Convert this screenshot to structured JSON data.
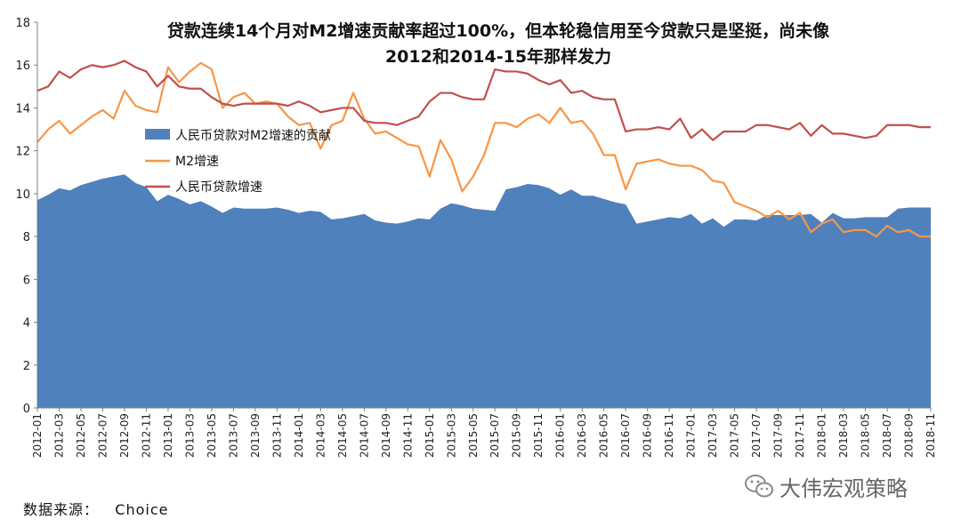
{
  "source_label": "数据来源：",
  "source_value": "Choice",
  "watermark": "大伟宏观策略",
  "watermark_icon": "wechat-icon",
  "chart_data": {
    "type": "area+line",
    "title_line1": "贷款连续14个月对M2增速贡献率超过100%，但本轮稳信用至今贷款只是坚挺，尚未像",
    "title_line2": "2012和2014-15年那样发力",
    "ylim": [
      0,
      18
    ],
    "yticks": [
      0,
      2,
      4,
      6,
      8,
      10,
      12,
      14,
      16,
      18
    ],
    "grid": false,
    "legend_position": "left-middle",
    "x_tick_labels": [
      "2012-01",
      "2012-03",
      "2012-05",
      "2012-07",
      "2012-09",
      "2012-11",
      "2013-01",
      "2013-03",
      "2013-05",
      "2013-07",
      "2013-09",
      "2013-11",
      "2014-01",
      "2014-03",
      "2014-05",
      "2014-07",
      "2014-09",
      "2014-11",
      "2015-01",
      "2015-03",
      "2015-05",
      "2015-07",
      "2015-09",
      "2015-11",
      "2016-01",
      "2016-03",
      "2016-05",
      "2016-07",
      "2016-09",
      "2016-11",
      "2017-01",
      "2017-03",
      "2017-05",
      "2017-07",
      "2017-09",
      "2017-11",
      "2018-01",
      "2018-03",
      "2018-05",
      "2018-07",
      "2018-09",
      "2018-11"
    ],
    "x": [
      "2012-01",
      "2012-02",
      "2012-03",
      "2012-04",
      "2012-05",
      "2012-06",
      "2012-07",
      "2012-08",
      "2012-09",
      "2012-10",
      "2012-11",
      "2012-12",
      "2013-01",
      "2013-02",
      "2013-03",
      "2013-04",
      "2013-05",
      "2013-06",
      "2013-07",
      "2013-08",
      "2013-09",
      "2013-10",
      "2013-11",
      "2013-12",
      "2014-01",
      "2014-02",
      "2014-03",
      "2014-04",
      "2014-05",
      "2014-06",
      "2014-07",
      "2014-08",
      "2014-09",
      "2014-10",
      "2014-11",
      "2014-12",
      "2015-01",
      "2015-02",
      "2015-03",
      "2015-04",
      "2015-05",
      "2015-06",
      "2015-07",
      "2015-08",
      "2015-09",
      "2015-10",
      "2015-11",
      "2015-12",
      "2016-01",
      "2016-02",
      "2016-03",
      "2016-04",
      "2016-05",
      "2016-06",
      "2016-07",
      "2016-08",
      "2016-09",
      "2016-10",
      "2016-11",
      "2016-12",
      "2017-01",
      "2017-02",
      "2017-03",
      "2017-04",
      "2017-05",
      "2017-06",
      "2017-07",
      "2017-08",
      "2017-09",
      "2017-10",
      "2017-11",
      "2017-12",
      "2018-01",
      "2018-02",
      "2018-03",
      "2018-04",
      "2018-05",
      "2018-06",
      "2018-07",
      "2018-08",
      "2018-09",
      "2018-10",
      "2018-11"
    ],
    "series": [
      {
        "name": "人民币贷款对M2增速的贡献",
        "type": "area",
        "color": "#4f81bd",
        "values": [
          9.7,
          9.95,
          10.25,
          10.15,
          10.4,
          10.55,
          10.7,
          10.8,
          10.9,
          10.5,
          10.3,
          9.65,
          9.95,
          9.75,
          9.5,
          9.65,
          9.4,
          9.1,
          9.35,
          9.3,
          9.3,
          9.3,
          9.35,
          9.25,
          9.1,
          9.2,
          9.15,
          8.8,
          8.85,
          8.95,
          9.05,
          8.75,
          8.65,
          8.6,
          8.7,
          8.85,
          8.8,
          9.3,
          9.55,
          9.45,
          9.3,
          9.25,
          9.2,
          10.2,
          10.3,
          10.45,
          10.4,
          10.25,
          9.95,
          10.2,
          9.9,
          9.9,
          9.75,
          9.6,
          9.5,
          8.6,
          8.7,
          8.8,
          8.9,
          8.85,
          9.05,
          8.6,
          8.85,
          8.45,
          8.8,
          8.8,
          8.75,
          9.0,
          9.0,
          9.0,
          9.0,
          9.05,
          8.65,
          9.1,
          8.85,
          8.85,
          8.9,
          8.9,
          8.9,
          9.3,
          9.35,
          9.35,
          9.35
        ]
      },
      {
        "name": "M2增速",
        "type": "line",
        "color": "#f79646",
        "values": [
          12.4,
          13.0,
          13.4,
          12.8,
          13.2,
          13.6,
          13.9,
          13.5,
          14.8,
          14.1,
          13.9,
          13.8,
          15.9,
          15.2,
          15.7,
          16.1,
          15.8,
          14.0,
          14.5,
          14.7,
          14.2,
          14.3,
          14.2,
          13.6,
          13.2,
          13.3,
          12.1,
          13.2,
          13.4,
          14.7,
          13.5,
          12.8,
          12.9,
          12.6,
          12.3,
          12.2,
          10.8,
          12.5,
          11.6,
          10.1,
          10.8,
          11.8,
          13.3,
          13.3,
          13.1,
          13.5,
          13.7,
          13.3,
          14.0,
          13.3,
          13.4,
          12.8,
          11.8,
          11.8,
          10.2,
          11.4,
          11.5,
          11.6,
          11.4,
          11.3,
          11.3,
          11.1,
          10.6,
          10.5,
          9.6,
          9.4,
          9.2,
          8.9,
          9.2,
          8.8,
          9.1,
          8.2,
          8.6,
          8.8,
          8.2,
          8.3,
          8.3,
          8.0,
          8.5,
          8.2,
          8.3,
          8.0,
          8.0
        ]
      },
      {
        "name": "人民币贷款增速",
        "type": "line",
        "color": "#c0504d",
        "values": [
          14.8,
          15.0,
          15.7,
          15.4,
          15.8,
          16.0,
          15.9,
          16.0,
          16.2,
          15.9,
          15.7,
          15.0,
          15.5,
          15.0,
          14.9,
          14.9,
          14.5,
          14.2,
          14.1,
          14.2,
          14.2,
          14.2,
          14.2,
          14.1,
          14.3,
          14.1,
          13.8,
          13.9,
          14.0,
          14.0,
          13.4,
          13.3,
          13.3,
          13.2,
          13.4,
          13.6,
          14.3,
          14.7,
          14.7,
          14.5,
          14.4,
          14.4,
          15.8,
          15.7,
          15.7,
          15.6,
          15.3,
          15.1,
          15.3,
          14.7,
          14.8,
          14.5,
          14.4,
          14.4,
          12.9,
          13.0,
          13.0,
          13.1,
          13.0,
          13.5,
          12.6,
          13.0,
          12.5,
          12.9,
          12.9,
          12.9,
          13.2,
          13.2,
          13.1,
          13.0,
          13.3,
          12.7,
          13.2,
          12.8,
          12.8,
          12.7,
          12.6,
          12.7,
          13.2,
          13.2,
          13.2,
          13.1,
          13.1
        ]
      }
    ]
  }
}
